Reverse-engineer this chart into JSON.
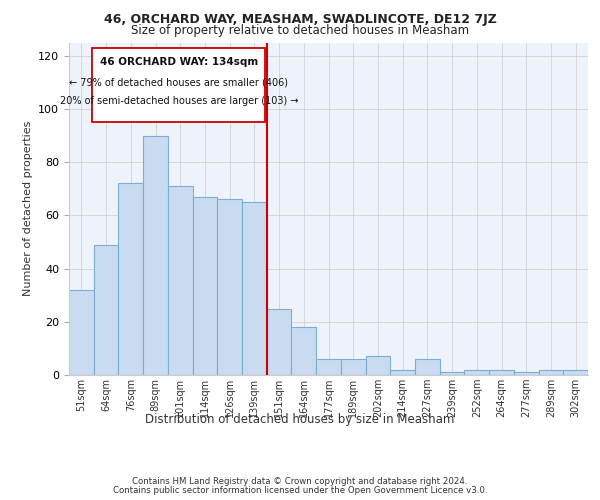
{
  "title1": "46, ORCHARD WAY, MEASHAM, SWADLINCOTE, DE12 7JZ",
  "title2": "Size of property relative to detached houses in Measham",
  "xlabel": "Distribution of detached houses by size in Measham",
  "ylabel": "Number of detached properties",
  "bar_labels": [
    "51sqm",
    "64sqm",
    "76sqm",
    "89sqm",
    "101sqm",
    "114sqm",
    "126sqm",
    "139sqm",
    "151sqm",
    "164sqm",
    "177sqm",
    "189sqm",
    "202sqm",
    "214sqm",
    "227sqm",
    "239sqm",
    "252sqm",
    "264sqm",
    "277sqm",
    "289sqm",
    "302sqm"
  ],
  "bar_values": [
    32,
    49,
    72,
    90,
    71,
    67,
    66,
    65,
    25,
    18,
    6,
    6,
    7,
    2,
    6,
    1,
    2,
    2,
    1,
    2,
    2
  ],
  "bar_color": "#c9dbf0",
  "bar_edge_color": "#7aafd4",
  "ylim": [
    0,
    125
  ],
  "yticks": [
    0,
    20,
    40,
    60,
    80,
    100,
    120
  ],
  "vline_x": 7.5,
  "vline_color": "#cc0000",
  "annotation_title": "46 ORCHARD WAY: 134sqm",
  "annotation_line1": "← 79% of detached houses are smaller (406)",
  "annotation_line2": "20% of semi-detached houses are larger (103) →",
  "footer1": "Contains HM Land Registry data © Crown copyright and database right 2024.",
  "footer2": "Contains public sector information licensed under the Open Government Licence v3.0.",
  "plot_bg_color": "#eef2fb"
}
